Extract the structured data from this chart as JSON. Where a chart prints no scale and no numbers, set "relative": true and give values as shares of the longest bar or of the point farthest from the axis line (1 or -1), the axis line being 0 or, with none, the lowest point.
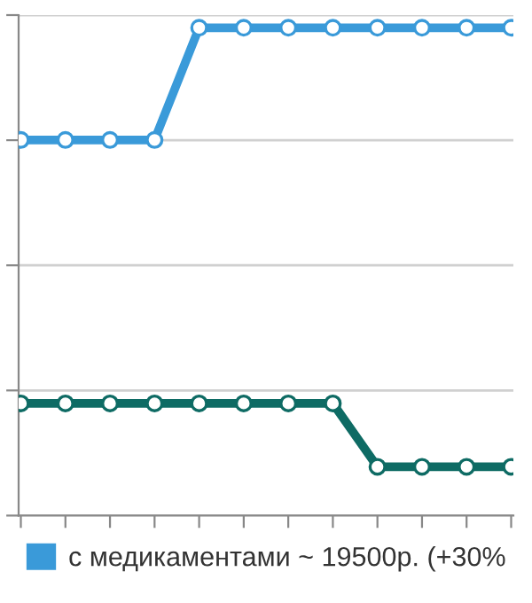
{
  "chart_data": {
    "type": "line",
    "relative": true,
    "categories": [
      null,
      null,
      null,
      null,
      null,
      null,
      null,
      null,
      null,
      null,
      null,
      null
    ],
    "series": [
      {
        "name": "с медикаментами ~ 19500р. (+30%",
        "color": "#3a9ad9",
        "values": [
          0.77,
          0.77,
          0.77,
          0.77,
          1,
          1,
          1,
          1,
          1,
          1,
          1,
          1
        ]
      },
      {
        "color": "#0e6b64",
        "values": [
          0.23,
          0.23,
          0.23,
          0.23,
          0.23,
          0.23,
          0.23,
          0.23,
          0.1,
          0.1,
          0.1,
          0.1
        ]
      }
    ],
    "grid": "y",
    "legend": "bottom",
    "marker": "circle",
    "line_style": "solid"
  }
}
